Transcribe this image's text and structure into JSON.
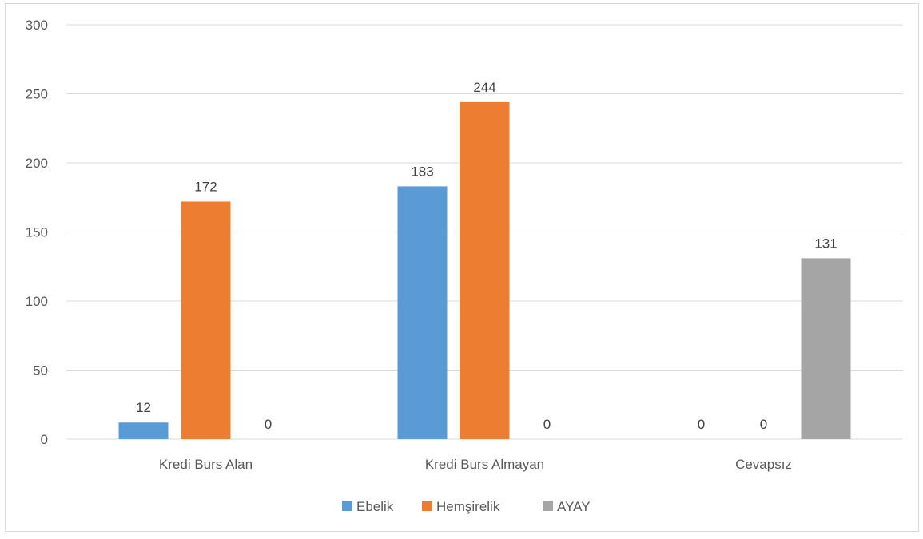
{
  "chart_data": {
    "type": "bar",
    "title": "",
    "xlabel": "",
    "ylabel": "",
    "categories": [
      "Kredi Burs Alan",
      "Kredi Burs Almayan",
      "Cevapsız"
    ],
    "series": [
      {
        "name": "Ebelik",
        "values": [
          12,
          183,
          0
        ],
        "color": "#5b9bd5"
      },
      {
        "name": "Hemşirelik",
        "values": [
          172,
          244,
          0
        ],
        "color": "#ed7d31"
      },
      {
        "name": "AYAY",
        "values": [
          0,
          0,
          131
        ],
        "color": "#a5a5a5"
      }
    ],
    "ylim": [
      0,
      300
    ],
    "yticks": [
      "0",
      "50",
      "100",
      "150",
      "200",
      "250",
      "300"
    ],
    "grid": true,
    "legend_position": "bottom",
    "data_labels": true,
    "gridline_color": "#d9d9d9"
  }
}
